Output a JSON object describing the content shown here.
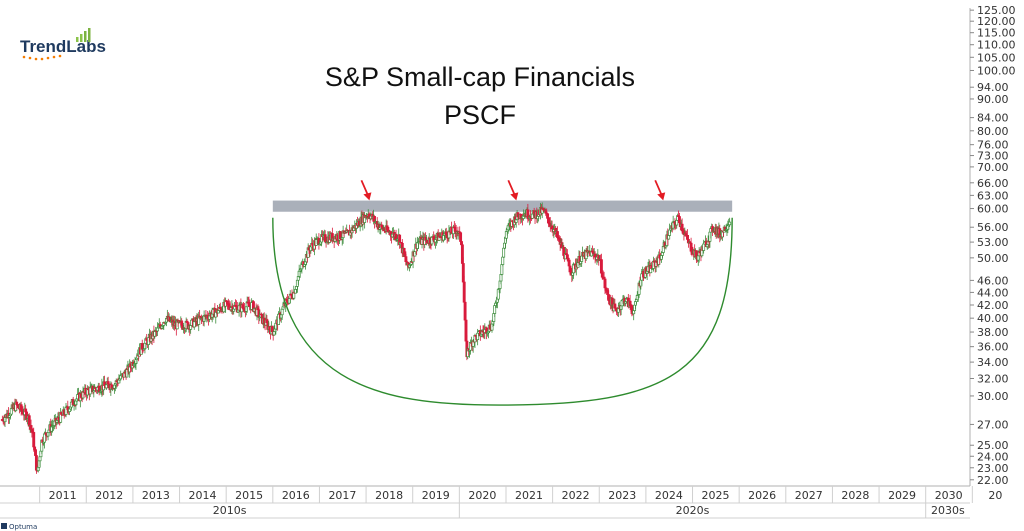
{
  "brand": {
    "logo_text": "TrendLabs",
    "footer_text": "Optuma"
  },
  "chart_data": {
    "type": "candlestick",
    "title": "S&P Small-cap Financials",
    "subtitle": "PSCF",
    "y_scale": "log",
    "ylim": [
      21.5,
      126
    ],
    "y_ticks": [
      125,
      120,
      115,
      110,
      105,
      100,
      94,
      90,
      84,
      80,
      76,
      73,
      70,
      66,
      63,
      60,
      56,
      53,
      50,
      46,
      44,
      42,
      40,
      38,
      36,
      34,
      32,
      30,
      27,
      25,
      24,
      23,
      22
    ],
    "x_ticks": [
      "2011",
      "2012",
      "2013",
      "2014",
      "2015",
      "2016",
      "2017",
      "2018",
      "2019",
      "2020",
      "2021",
      "2022",
      "2023",
      "2024",
      "2025",
      "2026",
      "2027",
      "2028",
      "2029",
      "2030",
      "20"
    ],
    "decade_labels": [
      "2010s",
      "2020s",
      "2030s"
    ],
    "bullish_color": "#3e8e3e",
    "bearish_color": "#d81b3c",
    "resistance_zone": {
      "low": 59.3,
      "high": 61.8,
      "start": 2016.0,
      "end": 2025.85,
      "color": "#aab0ba"
    },
    "arrow_markers": [
      {
        "x": 2018.05,
        "y": 60.5
      },
      {
        "x": 2021.2,
        "y": 60.5
      },
      {
        "x": 2024.35,
        "y": 60.5
      }
    ],
    "cup_curve": {
      "left_x": 2016.0,
      "left_y": 58,
      "bottom_x": 2020.85,
      "bottom_y": 29.0,
      "right_x": 2025.85,
      "right_y": 58,
      "color": "#2e8b2e"
    },
    "key_points": [
      {
        "x": 2010.2,
        "y": 27.5
      },
      {
        "x": 2010.5,
        "y": 29
      },
      {
        "x": 2010.75,
        "y": 27.8
      },
      {
        "x": 2010.85,
        "y": 26
      },
      {
        "x": 2010.95,
        "y": 22.5
      },
      {
        "x": 2011.05,
        "y": 25.5
      },
      {
        "x": 2011.2,
        "y": 26.5
      },
      {
        "x": 2011.5,
        "y": 28
      },
      {
        "x": 2011.75,
        "y": 29.5
      },
      {
        "x": 2012.0,
        "y": 30.5
      },
      {
        "x": 2012.3,
        "y": 31
      },
      {
        "x": 2012.6,
        "y": 31.3
      },
      {
        "x": 2012.9,
        "y": 33
      },
      {
        "x": 2013.2,
        "y": 36
      },
      {
        "x": 2013.5,
        "y": 38
      },
      {
        "x": 2013.7,
        "y": 40
      },
      {
        "x": 2013.9,
        "y": 39
      },
      {
        "x": 2014.2,
        "y": 39
      },
      {
        "x": 2014.5,
        "y": 40
      },
      {
        "x": 2014.8,
        "y": 41
      },
      {
        "x": 2015.0,
        "y": 42
      },
      {
        "x": 2015.3,
        "y": 41.5
      },
      {
        "x": 2015.55,
        "y": 42
      },
      {
        "x": 2015.75,
        "y": 40
      },
      {
        "x": 2016.0,
        "y": 38
      },
      {
        "x": 2016.25,
        "y": 42
      },
      {
        "x": 2016.45,
        "y": 44
      },
      {
        "x": 2016.6,
        "y": 48
      },
      {
        "x": 2016.8,
        "y": 52
      },
      {
        "x": 2017.0,
        "y": 53.5
      },
      {
        "x": 2017.3,
        "y": 54
      },
      {
        "x": 2017.6,
        "y": 54.5
      },
      {
        "x": 2017.85,
        "y": 57
      },
      {
        "x": 2018.05,
        "y": 59
      },
      {
        "x": 2018.3,
        "y": 56
      },
      {
        "x": 2018.5,
        "y": 55
      },
      {
        "x": 2018.7,
        "y": 54
      },
      {
        "x": 2018.9,
        "y": 48
      },
      {
        "x": 2019.1,
        "y": 53
      },
      {
        "x": 2019.4,
        "y": 53.5
      },
      {
        "x": 2019.7,
        "y": 54.5
      },
      {
        "x": 2019.95,
        "y": 55.5
      },
      {
        "x": 2020.05,
        "y": 53
      },
      {
        "x": 2020.15,
        "y": 35
      },
      {
        "x": 2020.3,
        "y": 37
      },
      {
        "x": 2020.5,
        "y": 38
      },
      {
        "x": 2020.7,
        "y": 39
      },
      {
        "x": 2020.85,
        "y": 45
      },
      {
        "x": 2021.0,
        "y": 55
      },
      {
        "x": 2021.2,
        "y": 58
      },
      {
        "x": 2021.4,
        "y": 59
      },
      {
        "x": 2021.6,
        "y": 58.5
      },
      {
        "x": 2021.8,
        "y": 59.5
      },
      {
        "x": 2022.0,
        "y": 56
      },
      {
        "x": 2022.2,
        "y": 52
      },
      {
        "x": 2022.4,
        "y": 47.5
      },
      {
        "x": 2022.6,
        "y": 50
      },
      {
        "x": 2022.8,
        "y": 51
      },
      {
        "x": 2023.0,
        "y": 50
      },
      {
        "x": 2023.15,
        "y": 44
      },
      {
        "x": 2023.35,
        "y": 41
      },
      {
        "x": 2023.55,
        "y": 43
      },
      {
        "x": 2023.75,
        "y": 41
      },
      {
        "x": 2023.9,
        "y": 47
      },
      {
        "x": 2024.1,
        "y": 48
      },
      {
        "x": 2024.3,
        "y": 50
      },
      {
        "x": 2024.5,
        "y": 55
      },
      {
        "x": 2024.7,
        "y": 58
      },
      {
        "x": 2024.9,
        "y": 53
      },
      {
        "x": 2025.1,
        "y": 50
      },
      {
        "x": 2025.3,
        "y": 53
      },
      {
        "x": 2025.45,
        "y": 56
      },
      {
        "x": 2025.6,
        "y": 54.5
      },
      {
        "x": 2025.8,
        "y": 57.5
      }
    ],
    "x_range": [
      2010.15,
      2030.95
    ]
  }
}
